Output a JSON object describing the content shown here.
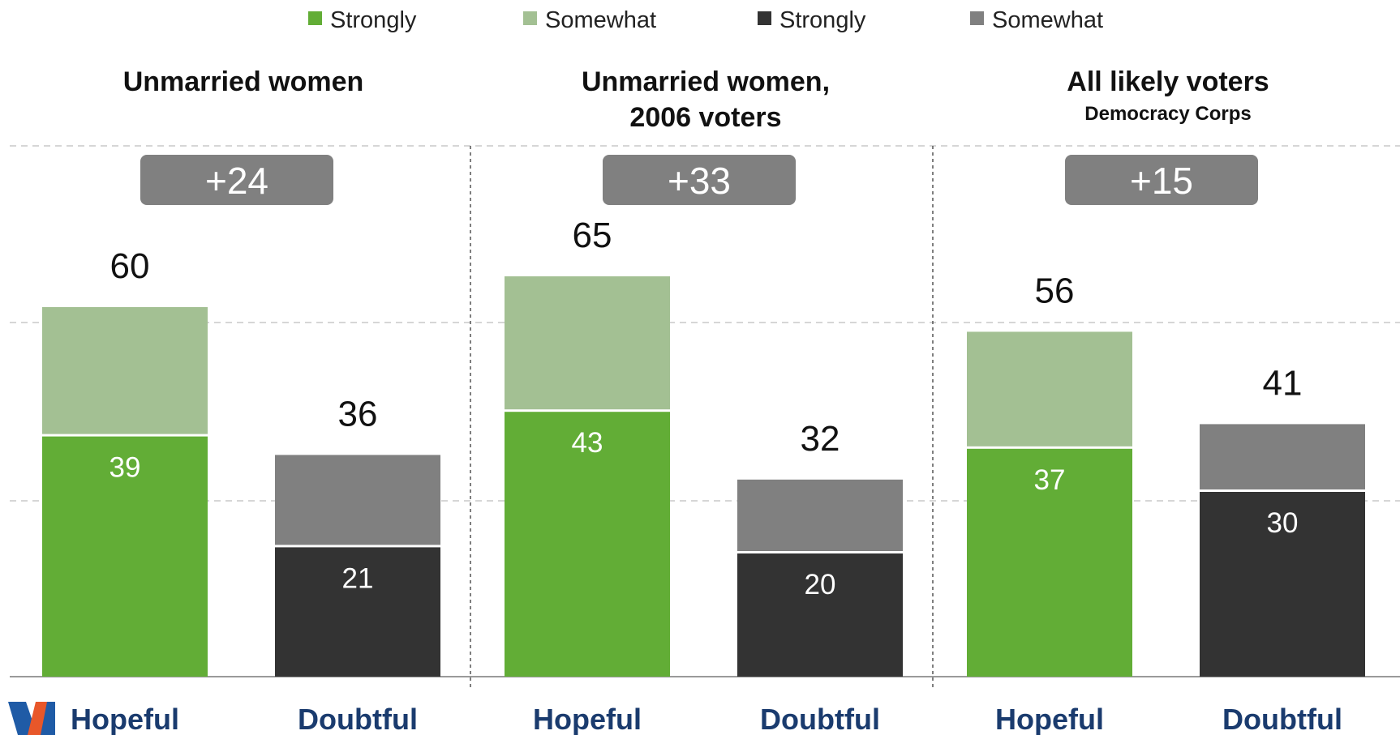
{
  "chart_data": {
    "type": "bar",
    "stacked": true,
    "categories": [
      "Hopeful",
      "Doubtful"
    ],
    "legend": [
      {
        "name": "Strongly",
        "color": "#62ad36"
      },
      {
        "name": "Somewhat",
        "color": "#a3c093"
      },
      {
        "name": "Strongly",
        "color": "#333333"
      },
      {
        "name": "Somewhat",
        "color": "#808080"
      }
    ],
    "legend_position": "top",
    "grid": true,
    "ylim": [
      0,
      70
    ],
    "panels": [
      {
        "title": "Unmarried women",
        "subtitle": "",
        "net": "+24",
        "bars": [
          {
            "category": "Hopeful",
            "strongly": 39,
            "total": 60
          },
          {
            "category": "Doubtful",
            "strongly": 21,
            "total": 36
          }
        ]
      },
      {
        "title": "Unmarried women,\n2006 voters",
        "subtitle": "",
        "net": "+33",
        "bars": [
          {
            "category": "Hopeful",
            "strongly": 43,
            "total": 65
          },
          {
            "category": "Doubtful",
            "strongly": 20,
            "total": 32
          }
        ]
      },
      {
        "title": "All likely voters",
        "subtitle": "Democracy Corps",
        "net": "+15",
        "bars": [
          {
            "category": "Hopeful",
            "strongly": 37,
            "total": 56
          },
          {
            "category": "Doubtful",
            "strongly": 30,
            "total": 41
          }
        ]
      }
    ]
  },
  "colors": {
    "hopeful_strongly": "#62ad36",
    "hopeful_somewhat": "#a3c093",
    "doubtful_strongly": "#333333",
    "doubtful_somewhat": "#808080",
    "badge": "#808080",
    "category_text": "#1a3b6e"
  },
  "logo": {
    "icon": "party-logo-icon"
  }
}
